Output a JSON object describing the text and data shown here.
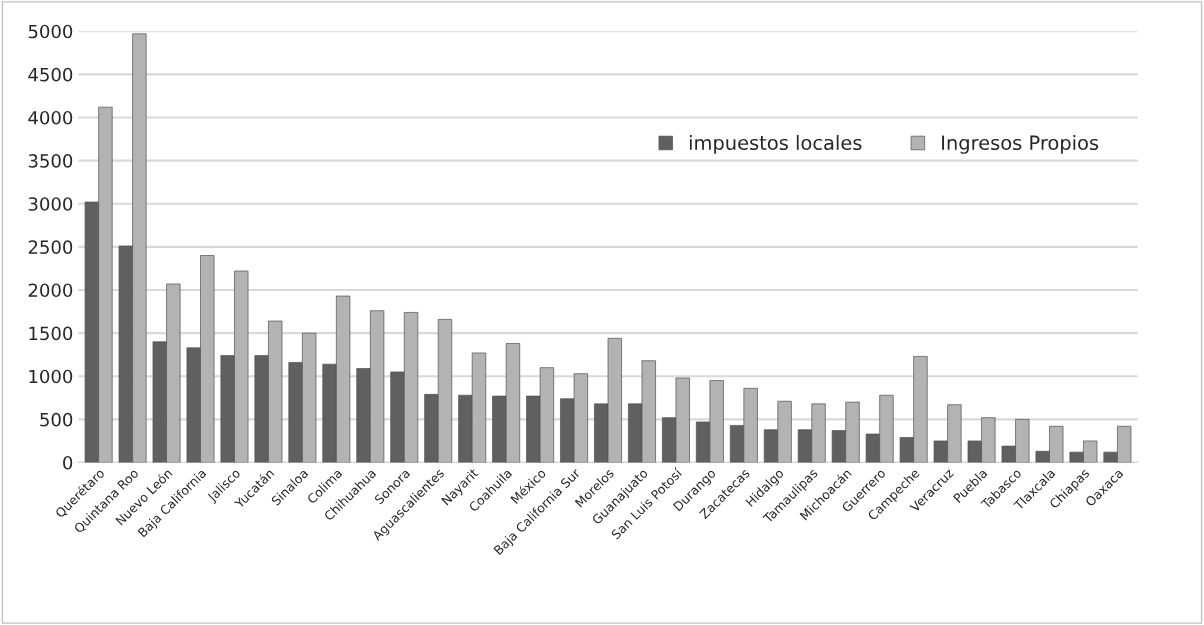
{
  "chart_data": {
    "type": "bar",
    "categories": [
      "Querétaro",
      "Quintana Roo",
      "Nuevo León",
      "Baja California",
      "Jalisco",
      "Yucatán",
      "Sinaloa",
      "Colima",
      "Chihuahua",
      "Sonora",
      "Aguascalientes",
      "Nayarit",
      "Coahuila",
      "México",
      "Baja California Sur",
      "Morelos",
      "Guanajuato",
      "San Luis Potosí",
      "Durango",
      "Zacatecas",
      "Hidalgo",
      "Tamaulipas",
      "Michoacán",
      "Guerrero",
      "Campeche",
      "Veracruz",
      "Puebla",
      "Tabasco",
      "Tlaxcala",
      "Chiapas",
      "Oaxaca"
    ],
    "series": [
      {
        "name": "impuestos locales",
        "color": "#606060",
        "values": [
          3020,
          2510,
          1400,
          1330,
          1240,
          1240,
          1160,
          1140,
          1090,
          1050,
          790,
          780,
          770,
          770,
          740,
          680,
          680,
          520,
          470,
          430,
          380,
          380,
          370,
          330,
          290,
          250,
          250,
          190,
          130,
          120,
          120
        ]
      },
      {
        "name": "Ingresos Propios",
        "color": "#b3b3b3",
        "values": [
          4120,
          4970,
          2070,
          2400,
          2220,
          1640,
          1500,
          1930,
          1760,
          1740,
          1660,
          1270,
          1380,
          1100,
          1030,
          1440,
          1180,
          980,
          950,
          860,
          710,
          680,
          700,
          780,
          1230,
          670,
          520,
          500,
          420,
          250,
          420
        ]
      }
    ],
    "ylim": [
      0,
      5000
    ],
    "yticks": [
      0,
      500,
      1000,
      1500,
      2000,
      2500,
      3000,
      3500,
      4000,
      4500,
      5000
    ],
    "grid": "y",
    "legend": "top right"
  }
}
